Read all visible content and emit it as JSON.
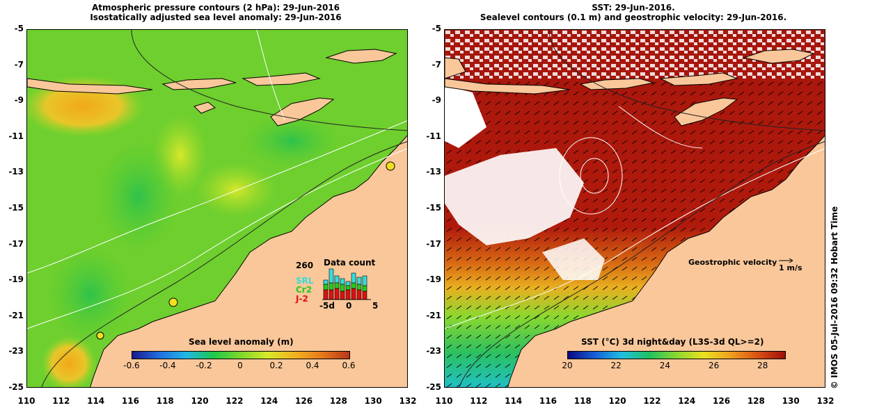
{
  "left": {
    "title_line1": "Atmospheric pressure contours (2 hPa): 29-Jun-2016",
    "title_line2": "Isostatically adjusted sea level anomaly: 29-Jun-2016",
    "colorbar": {
      "title": "Sea level anomaly (m)",
      "ticks": [
        "-0.6",
        "-0.4",
        "-0.2",
        "0",
        "0.2",
        "0.4",
        "0.6"
      ],
      "colors": [
        "#1a1a8c",
        "#1f6fe0",
        "#21b8e6",
        "#1ec84a",
        "#7ed82b",
        "#d8e82a",
        "#f2b21f",
        "#e6781a",
        "#b8361a"
      ]
    },
    "inset": {
      "count_label": "260",
      "title": "Data count",
      "legend": [
        {
          "label": "SRL",
          "color": "#33dddd"
        },
        {
          "label": "Cr2",
          "color": "#22cc22"
        },
        {
          "label": "J-2",
          "color": "#dd1111"
        }
      ],
      "x_ticks": [
        "-5d",
        "0",
        "5"
      ]
    }
  },
  "right": {
    "title_line1": "SST: 29-Jun-2016.",
    "title_line2": "Sealevel contours (0.1 m) and geostrophic velocity: 29-Jun-2016.",
    "velocity_label": "Geostrophic velocity",
    "velocity_scale": "1 m/s",
    "colorbar": {
      "title": "SST (°C) 3d night&day (L3S-3d QL>=2)",
      "ticks": [
        "20",
        "22",
        "24",
        "26",
        "28"
      ],
      "colors": [
        "#0a0a80",
        "#1560d8",
        "#20c0e0",
        "#20c060",
        "#8ad830",
        "#e8e020",
        "#f0a020",
        "#d85014",
        "#a01008"
      ]
    }
  },
  "axes": {
    "y_ticks": [
      "-5",
      "-7",
      "-9",
      "-11",
      "-13",
      "-15",
      "-17",
      "-19",
      "-21",
      "-23",
      "-25"
    ],
    "x_ticks": [
      "110",
      "112",
      "114",
      "116",
      "118",
      "120",
      "122",
      "124",
      "126",
      "128",
      "130",
      "132"
    ]
  },
  "credit": "© IMOS 05-Jul-2016 09:32 Hobart Time",
  "colors": {
    "land": "#f9c79a",
    "left_sea": "#55cc33",
    "right_sea": "#a8160c",
    "cloud": "#ffffff"
  }
}
